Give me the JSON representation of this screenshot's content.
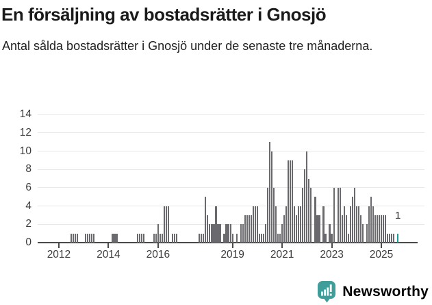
{
  "header": {
    "title": "En försäljning av bostadsrätter i Gnosjö",
    "subtitle": "Antal sålda bostadsrätter i Gnosjö under de senaste tre månaderna."
  },
  "branding": {
    "logo_text": "Newsworthy",
    "logo_color": "#3f9e99",
    "logo_icon": "speech-bubble-bar-chart-icon"
  },
  "chart_data": {
    "type": "bar",
    "title": "En försäljning av bostadsrätter i Gnosjö",
    "subtitle": "Antal sålda bostadsrätter i Gnosjö under de senaste tre månaderna.",
    "x_start": "2011-01",
    "x_interval": "month",
    "values": [
      0,
      0,
      0,
      0,
      0,
      0,
      0,
      0,
      0,
      0,
      0,
      0,
      0,
      0,
      0,
      0,
      0,
      0,
      1,
      1,
      1,
      1,
      0,
      0,
      0,
      1,
      1,
      1,
      1,
      1,
      0,
      0,
      0,
      0,
      0,
      0,
      0,
      0,
      1,
      1,
      1,
      0,
      0,
      0,
      0,
      0,
      0,
      0,
      0,
      0,
      1,
      1,
      1,
      1,
      0,
      0,
      0,
      0,
      1,
      1,
      2,
      1,
      1,
      4,
      4,
      4,
      0,
      1,
      1,
      1,
      0,
      0,
      0,
      0,
      0,
      0,
      0,
      0,
      0,
      0,
      1,
      1,
      1,
      5,
      3,
      2,
      2,
      2,
      4,
      2,
      2,
      0,
      1,
      2,
      2,
      2,
      1,
      0,
      1,
      0,
      2,
      2,
      3,
      3,
      3,
      3,
      4,
      4,
      4,
      1,
      1,
      1,
      2,
      6,
      11,
      10,
      6,
      4,
      1,
      1,
      2,
      3,
      4,
      9,
      9,
      9,
      4,
      3,
      4,
      4,
      6,
      8,
      10,
      7,
      6,
      0,
      5,
      3,
      3,
      0,
      4,
      1,
      0,
      2,
      1,
      6,
      0,
      6,
      6,
      3,
      4,
      3,
      1,
      4,
      5,
      6,
      4,
      4,
      3,
      2,
      0,
      2,
      4,
      5,
      4,
      3,
      3,
      3,
      3,
      3,
      3,
      1,
      1,
      1,
      1,
      0,
      1
    ],
    "highlight": {
      "index": 176,
      "label": "1"
    },
    "y_ticks": [
      0,
      2,
      4,
      6,
      8,
      10,
      12,
      14
    ],
    "x_tick_years": [
      2012,
      2014,
      2016,
      2019,
      2021,
      2023,
      2025
    ],
    "ylim": [
      0,
      14
    ],
    "grid": true,
    "legend": "none",
    "bar_color": "#6a6a6e",
    "highlight_color": "#13a099"
  }
}
